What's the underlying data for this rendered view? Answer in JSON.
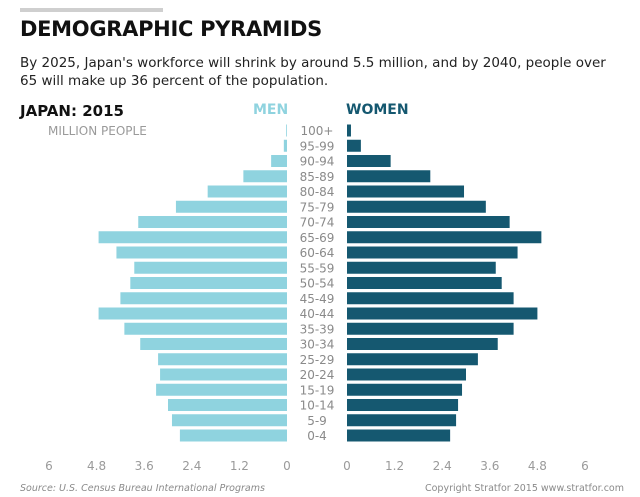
{
  "header": {
    "title": "DEMOGRAPHIC PYRAMIDS",
    "subtitle": "By 2025, Japan's workforce will shrink by around 5.5 million, and by 2040, people over 65 will make up 36 percent of the population."
  },
  "chart_data": {
    "type": "bar",
    "orientation": "horizontal-pyramid",
    "title": "JAPAN: 2015",
    "units_label": "MILLION PEOPLE",
    "categories": [
      "0-4",
      "5-9",
      "10-14",
      "15-19",
      "20-24",
      "25-29",
      "30-34",
      "35-39",
      "40-44",
      "45-49",
      "50-54",
      "55-59",
      "60-64",
      "65-69",
      "70-74",
      "75-79",
      "80-84",
      "85-89",
      "90-94",
      "95-99",
      "100+"
    ],
    "series": [
      {
        "name": "MEN",
        "color": "#8fd3df",
        "values": [
          2.7,
          2.9,
          3.0,
          3.3,
          3.2,
          3.25,
          3.7,
          4.1,
          4.75,
          4.2,
          3.95,
          3.85,
          4.3,
          4.75,
          3.75,
          2.8,
          2.0,
          1.1,
          0.4,
          0.08,
          0.02
        ]
      },
      {
        "name": "WOMEN",
        "color": "#155870",
        "values": [
          2.6,
          2.75,
          2.8,
          2.9,
          3.0,
          3.3,
          3.8,
          4.2,
          4.8,
          4.2,
          3.9,
          3.75,
          4.3,
          4.9,
          4.1,
          3.5,
          2.95,
          2.1,
          1.1,
          0.35,
          0.1
        ]
      }
    ],
    "xticks_left": [
      "6",
      "4.8",
      "3.6",
      "2.4",
      "1.2",
      "0"
    ],
    "xticks_right": [
      "0",
      "1.2",
      "2.4",
      "3.6",
      "4.8",
      "6"
    ],
    "xlim": [
      0,
      6
    ],
    "grid": false
  },
  "footer": {
    "source": "Source: U.S. Census Bureau International Programs",
    "copyright": "Copyright Stratfor 2015   www.stratfor.com"
  }
}
